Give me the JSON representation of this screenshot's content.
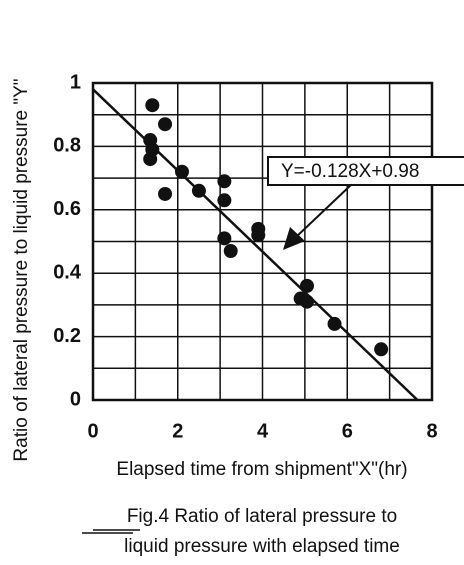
{
  "chart_data": {
    "type": "scatter",
    "x_label": "Elapsed time from shipment\"X\"(hr)",
    "y_label": "Ratio of lateral pressure to liquid pressure \"Y\"",
    "caption": [
      "Fig.4 Ratio of lateral pressure to",
      "liquid pressure with elapsed time"
    ],
    "series": [
      {
        "color": "#111111",
        "x": [
          1.4,
          1.7,
          1.35,
          1.4,
          1.35,
          1.7,
          2.1,
          2.5,
          3.1,
          3.1,
          3.1,
          3.25,
          3.9,
          3.9,
          4.9,
          5.05,
          5.05,
          5.7,
          6.8
        ],
        "values": [
          0.93,
          0.87,
          0.82,
          0.79,
          0.76,
          0.65,
          0.72,
          0.66,
          0.69,
          0.63,
          0.51,
          0.47,
          0.54,
          0.52,
          0.32,
          0.36,
          0.31,
          0.24,
          0.16
        ]
      }
    ],
    "fit": {
      "slope": -0.128,
      "intercept": 0.98,
      "label": "Y=-0.128X+0.98"
    },
    "xlim": [
      0,
      8
    ],
    "xticks": [
      0,
      2,
      4,
      6,
      8
    ],
    "xminor": [
      1,
      3,
      5,
      7
    ],
    "ylim": [
      0,
      1
    ],
    "yticks": [
      0,
      0.2,
      0.4,
      0.6,
      0.8,
      1
    ],
    "yminor": [
      0.1,
      0.3,
      0.5,
      0.7,
      0.9
    ],
    "grid": true
  }
}
